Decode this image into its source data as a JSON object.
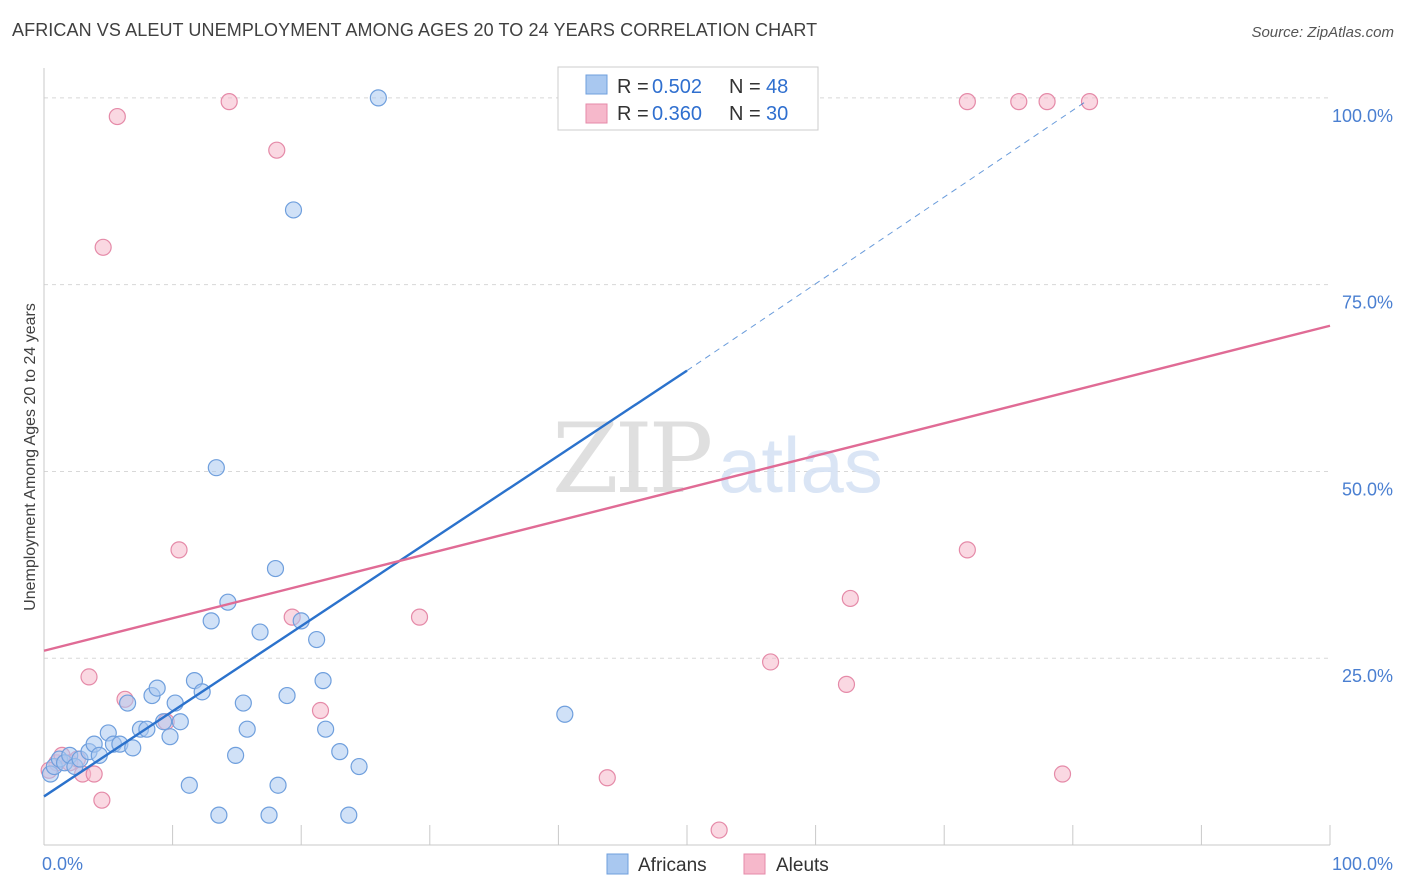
{
  "header": {
    "title": "AFRICAN VS ALEUT UNEMPLOYMENT AMONG AGES 20 TO 24 YEARS CORRELATION CHART",
    "source": "Source: ZipAtlas.com"
  },
  "watermark": {
    "zip": "ZIP",
    "atlas": "atlas"
  },
  "colors": {
    "africans_fill": "#a9c8f0",
    "africans_stroke": "#6f9fdd",
    "africans_line": "#2b72cc",
    "aleuts_fill": "#f6b8cb",
    "aleuts_stroke": "#e58aa8",
    "aleuts_line": "#e06b95",
    "grid": "#d8d8d8",
    "tick_label": "#4a7fd1"
  },
  "legend": {
    "rows": [
      {
        "r_label": "R = ",
        "r_value": "0.502",
        "n_label": "N = ",
        "n_value": "48"
      },
      {
        "r_label": "R = ",
        "r_value": "0.360",
        "n_label": "N = ",
        "n_value": "30"
      }
    ]
  },
  "chart_data": {
    "type": "scatter",
    "title": "AFRICAN VS ALEUT UNEMPLOYMENT AMONG AGES 20 TO 24 YEARS CORRELATION CHART",
    "xlabel": "",
    "ylabel": "Unemployment Among Ages 20 to 24 years",
    "xlim": [
      0,
      100
    ],
    "ylim": [
      0,
      104
    ],
    "x_tick_labels": [
      "0.0%",
      "100.0%"
    ],
    "y_ticks": [
      25,
      50,
      75,
      100
    ],
    "y_tick_labels": [
      "25.0%",
      "50.0%",
      "75.0%",
      "100.0%"
    ],
    "grid": true,
    "legend_position": "top-center",
    "series": [
      {
        "name": "Africans",
        "r": 0.502,
        "n": 48,
        "trend": {
          "x0": 0,
          "y0": 6.5,
          "x1": 50,
          "y1": 63.5,
          "dashed_to_x": 81,
          "dashed_to_y": 99.5
        },
        "points": [
          [
            0.5,
            9.5
          ],
          [
            0.8,
            10.5
          ],
          [
            1.2,
            11.5
          ],
          [
            1.6,
            11
          ],
          [
            2.0,
            12
          ],
          [
            2.4,
            10.5
          ],
          [
            2.8,
            11.5
          ],
          [
            3.5,
            12.5
          ],
          [
            3.9,
            13.5
          ],
          [
            4.3,
            12
          ],
          [
            5.0,
            15
          ],
          [
            5.4,
            13.5
          ],
          [
            5.9,
            13.5
          ],
          [
            6.5,
            19
          ],
          [
            6.9,
            13
          ],
          [
            7.5,
            15.5
          ],
          [
            8.0,
            15.5
          ],
          [
            8.4,
            20
          ],
          [
            8.8,
            21
          ],
          [
            9.3,
            16.5
          ],
          [
            9.8,
            14.5
          ],
          [
            10.2,
            19
          ],
          [
            10.6,
            16.5
          ],
          [
            11.3,
            8
          ],
          [
            11.7,
            22
          ],
          [
            12.3,
            20.5
          ],
          [
            13.0,
            30
          ],
          [
            13.4,
            50.5
          ],
          [
            13.6,
            4
          ],
          [
            14.3,
            32.5
          ],
          [
            14.9,
            12
          ],
          [
            15.8,
            15.5
          ],
          [
            15.5,
            19
          ],
          [
            16.8,
            28.5
          ],
          [
            17.5,
            4
          ],
          [
            18.0,
            37
          ],
          [
            18.2,
            8
          ],
          [
            18.9,
            20
          ],
          [
            19.4,
            85
          ],
          [
            20.0,
            30
          ],
          [
            21.2,
            27.5
          ],
          [
            21.7,
            22
          ],
          [
            21.9,
            15.5
          ],
          [
            23.0,
            12.5
          ],
          [
            23.7,
            4
          ],
          [
            24.5,
            10.5
          ],
          [
            26.0,
            100
          ],
          [
            40.5,
            17.5
          ]
        ]
      },
      {
        "name": "Aleuts",
        "r": 0.36,
        "n": 30,
        "trend": {
          "x0": 0,
          "y0": 26,
          "x1": 100,
          "y1": 69.5
        },
        "points": [
          [
            1.0,
            11
          ],
          [
            1.4,
            12
          ],
          [
            2.0,
            11
          ],
          [
            2.6,
            11.5
          ],
          [
            3.0,
            9.5
          ],
          [
            3.5,
            22.5
          ],
          [
            3.9,
            9.5
          ],
          [
            4.5,
            6
          ],
          [
            4.6,
            80
          ],
          [
            5.7,
            97.5
          ],
          [
            6.3,
            19.5
          ],
          [
            9.5,
            16.5
          ],
          [
            10.5,
            39.5
          ],
          [
            14.4,
            99.5
          ],
          [
            18.1,
            93
          ],
          [
            19.3,
            30.5
          ],
          [
            21.5,
            18
          ],
          [
            29.2,
            30.5
          ],
          [
            43.8,
            9
          ],
          [
            52.5,
            2
          ],
          [
            56.5,
            24.5
          ],
          [
            62.4,
            21.5
          ],
          [
            62.7,
            33
          ],
          [
            71.8,
            99.5
          ],
          [
            71.8,
            39.5
          ],
          [
            75.8,
            99.5
          ],
          [
            78.0,
            99.5
          ],
          [
            79.2,
            9.5
          ],
          [
            81.3,
            99.5
          ],
          [
            0.4,
            10
          ]
        ]
      }
    ]
  }
}
